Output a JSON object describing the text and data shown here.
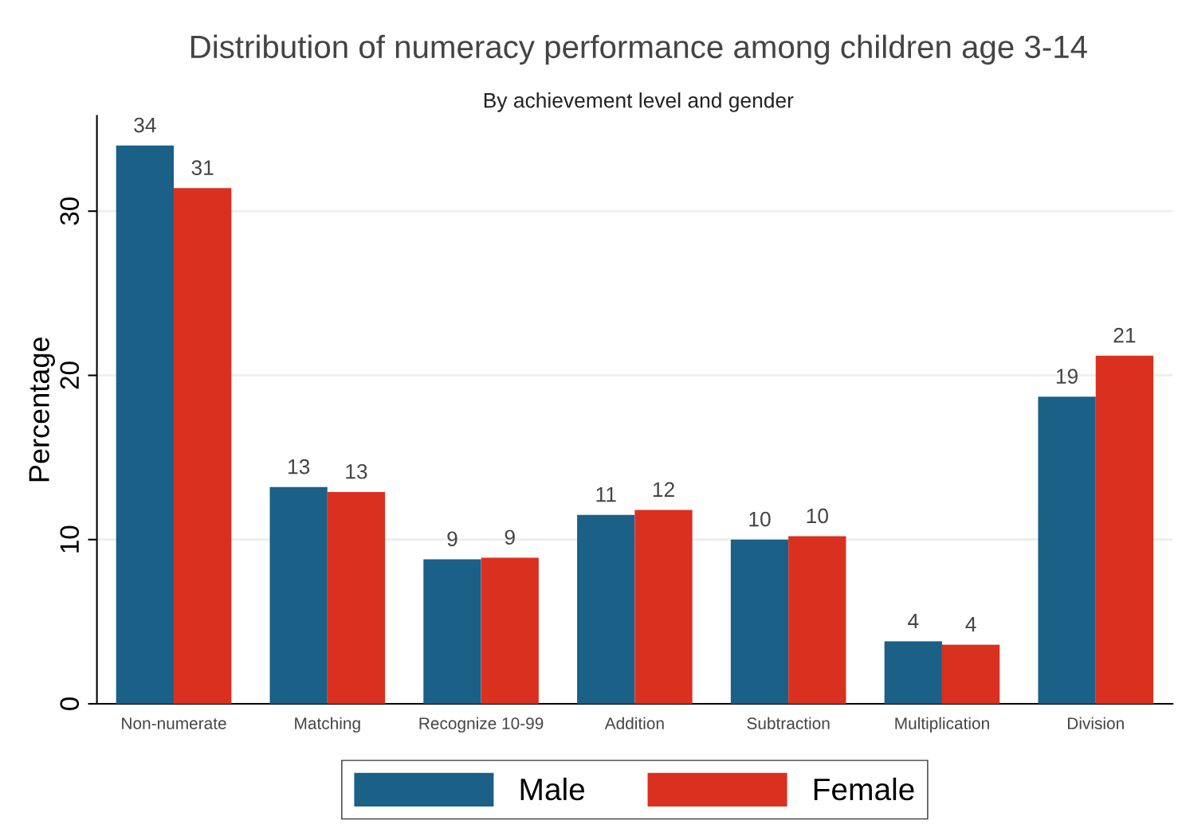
{
  "chart_data": {
    "type": "bar",
    "title": "Distribution of numeracy performance among children age 3-14",
    "subtitle": "By achievement level and gender",
    "ylabel": "Percentage",
    "categories": [
      "Non-numerate",
      "Matching",
      "Recognize 10-99",
      "Addition",
      "Subtraction",
      "Multiplication",
      "Division"
    ],
    "series": [
      {
        "name": "Male",
        "color": "#1a6087",
        "values": [
          34.0,
          13.2,
          8.8,
          11.5,
          10.0,
          3.8,
          18.7
        ],
        "value_labels": [
          "34",
          "13",
          "9",
          "11",
          "10",
          "4",
          "19"
        ]
      },
      {
        "name": "Female",
        "color": "#da3020",
        "values": [
          31.4,
          12.9,
          8.9,
          11.8,
          10.2,
          3.6,
          21.2
        ],
        "value_labels": [
          "31",
          "13",
          "9",
          "12",
          "10",
          "4",
          "21"
        ]
      }
    ],
    "ylim": [
      0,
      35.8
    ],
    "yticks": [
      0,
      10,
      20,
      30
    ],
    "grid": "y",
    "legend": "bottom"
  }
}
